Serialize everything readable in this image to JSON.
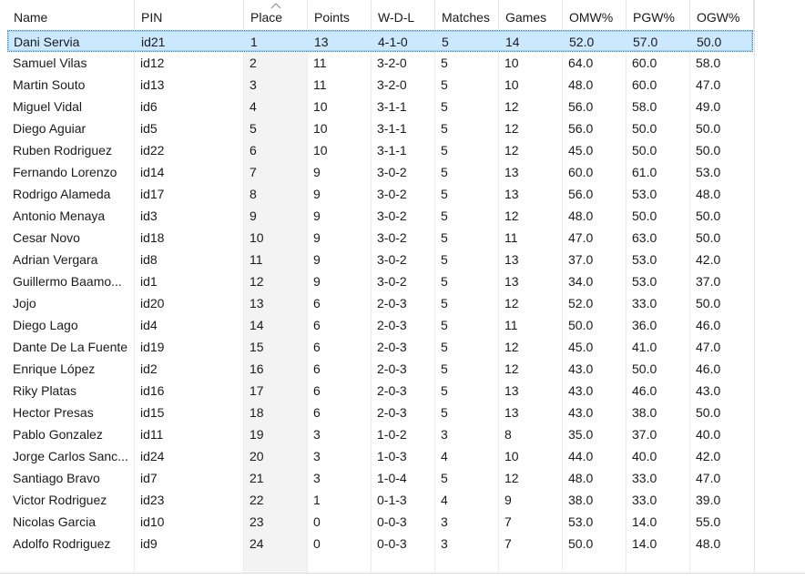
{
  "columns": [
    "Name",
    "PIN",
    "Place",
    "Points",
    "W-D-L",
    "Matches",
    "Games",
    "OMW%",
    "PGW%",
    "OGW%"
  ],
  "sort": {
    "column": "Place",
    "direction": "ascending",
    "icon": "sort-ascending-icon"
  },
  "selected_row": 0,
  "rows": [
    [
      "Dani Servia",
      "id21",
      "1",
      "13",
      "4-1-0",
      "5",
      "14",
      "52.0",
      "57.0",
      "50.0"
    ],
    [
      "Samuel Vilas",
      "id12",
      "2",
      "11",
      "3-2-0",
      "5",
      "10",
      "64.0",
      "60.0",
      "58.0"
    ],
    [
      "Martin Souto",
      "id13",
      "3",
      "11",
      "3-2-0",
      "5",
      "10",
      "48.0",
      "60.0",
      "47.0"
    ],
    [
      "Miguel Vidal",
      "id6",
      "4",
      "10",
      "3-1-1",
      "5",
      "12",
      "56.0",
      "58.0",
      "49.0"
    ],
    [
      "Diego Aguiar",
      "id5",
      "5",
      "10",
      "3-1-1",
      "5",
      "12",
      "56.0",
      "50.0",
      "50.0"
    ],
    [
      "Ruben Rodriguez",
      "id22",
      "6",
      "10",
      "3-1-1",
      "5",
      "12",
      "45.0",
      "50.0",
      "50.0"
    ],
    [
      "Fernando Lorenzo",
      "id14",
      "7",
      "9",
      "3-0-2",
      "5",
      "13",
      "60.0",
      "61.0",
      "53.0"
    ],
    [
      "Rodrigo Alameda",
      "id17",
      "8",
      "9",
      "3-0-2",
      "5",
      "13",
      "56.0",
      "53.0",
      "48.0"
    ],
    [
      "Antonio Menaya",
      "id3",
      "9",
      "9",
      "3-0-2",
      "5",
      "12",
      "48.0",
      "50.0",
      "50.0"
    ],
    [
      "Cesar Novo",
      "id18",
      "10",
      "9",
      "3-0-2",
      "5",
      "11",
      "47.0",
      "63.0",
      "50.0"
    ],
    [
      "Adrian Vergara",
      "id8",
      "11",
      "9",
      "3-0-2",
      "5",
      "13",
      "37.0",
      "53.0",
      "42.0"
    ],
    [
      "Guillermo Baamo...",
      "id1",
      "12",
      "9",
      "3-0-2",
      "5",
      "13",
      "34.0",
      "53.0",
      "37.0"
    ],
    [
      "Jojo",
      "id20",
      "13",
      "6",
      "2-0-3",
      "5",
      "12",
      "52.0",
      "33.0",
      "50.0"
    ],
    [
      "Diego Lago",
      "id4",
      "14",
      "6",
      "2-0-3",
      "5",
      "11",
      "50.0",
      "36.0",
      "46.0"
    ],
    [
      "Dante De La Fuente",
      "id19",
      "15",
      "6",
      "2-0-3",
      "5",
      "12",
      "45.0",
      "41.0",
      "47.0"
    ],
    [
      "Enrique López",
      "id2",
      "16",
      "6",
      "2-0-3",
      "5",
      "12",
      "43.0",
      "50.0",
      "46.0"
    ],
    [
      "Riky Platas",
      "id16",
      "17",
      "6",
      "2-0-3",
      "5",
      "13",
      "43.0",
      "46.0",
      "43.0"
    ],
    [
      "Hector Presas",
      "id15",
      "18",
      "6",
      "2-0-3",
      "5",
      "13",
      "43.0",
      "38.0",
      "50.0"
    ],
    [
      "Pablo Gonzalez",
      "id11",
      "19",
      "3",
      "1-0-2",
      "3",
      "8",
      "35.0",
      "37.0",
      "40.0"
    ],
    [
      "Jorge Carlos Sanc...",
      "id24",
      "20",
      "3",
      "1-0-3",
      "4",
      "10",
      "44.0",
      "40.0",
      "42.0"
    ],
    [
      "Santiago Bravo",
      "id7",
      "21",
      "3",
      "1-0-4",
      "5",
      "12",
      "48.0",
      "33.0",
      "47.0"
    ],
    [
      "Victor Rodriguez",
      "id23",
      "22",
      "1",
      "0-1-3",
      "4",
      "9",
      "38.0",
      "33.0",
      "39.0"
    ],
    [
      "Nicolas Garcia",
      "id10",
      "23",
      "0",
      "0-0-3",
      "3",
      "7",
      "53.0",
      "14.0",
      "55.0"
    ],
    [
      "Adolfo Rodriguez",
      "id9",
      "24",
      "0",
      "0-0-3",
      "3",
      "7",
      "50.0",
      "14.0",
      "48.0"
    ]
  ]
}
